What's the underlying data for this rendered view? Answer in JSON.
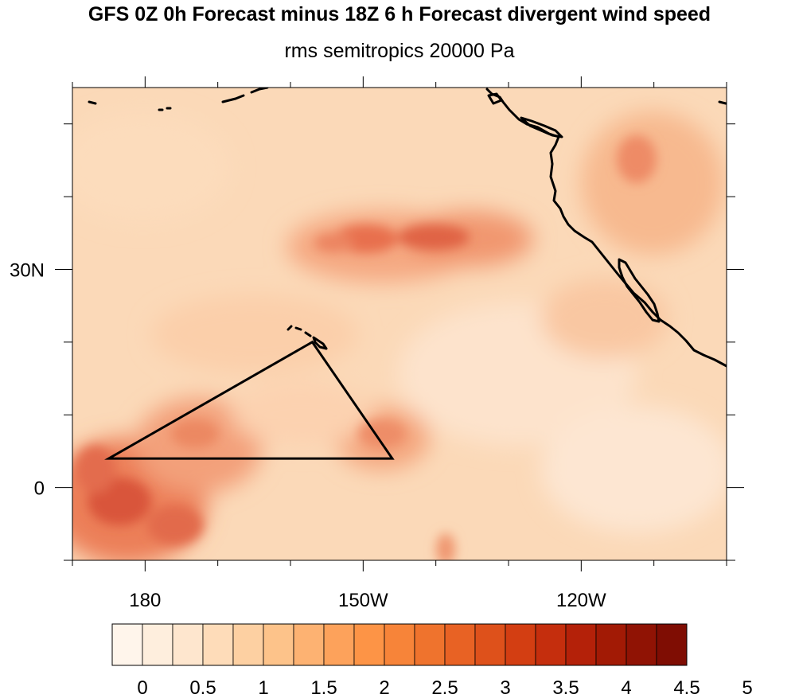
{
  "title": "GFS 0Z 0h Forecast minus 18Z 6 h Forecast divergent wind speed",
  "subtitle": "rms semitropics 20000 Pa",
  "map": {
    "projection": "cylindrical-equidistant",
    "lon_range": [
      170,
      260
    ],
    "lat_range": [
      -10,
      55
    ],
    "lon_ticks": [
      {
        "value": 180,
        "label": "180"
      },
      {
        "value": 210,
        "label": "150W"
      },
      {
        "value": 240,
        "label": "120W"
      }
    ],
    "lat_ticks": [
      {
        "value": 30,
        "label": "30N"
      },
      {
        "value": 0,
        "label": "0"
      }
    ],
    "triangle_region": {
      "vertices_lonlat": [
        [
          175,
          4
        ],
        [
          203,
          20
        ],
        [
          214,
          4
        ]
      ]
    },
    "coastline": "North American west coast, Hawaiian Islands, Aleutian islets"
  },
  "colorbar": {
    "labels": [
      "0",
      "0.5",
      "1",
      "1.5",
      "2",
      "2.5",
      "3",
      "3.5",
      "4",
      "4.5",
      "5"
    ],
    "colors": [
      "#fff5eb",
      "#feeedd",
      "#fee6ce",
      "#fedcb9",
      "#fdd0a2",
      "#fdc38a",
      "#fdb272",
      "#fda25b",
      "#fd9446",
      "#f78439",
      "#ef732d",
      "#e86224",
      "#de511b",
      "#d33e12",
      "#c52e0d",
      "#b42109",
      "#a21a05",
      "#901304",
      "#7f0d03"
    ]
  }
}
